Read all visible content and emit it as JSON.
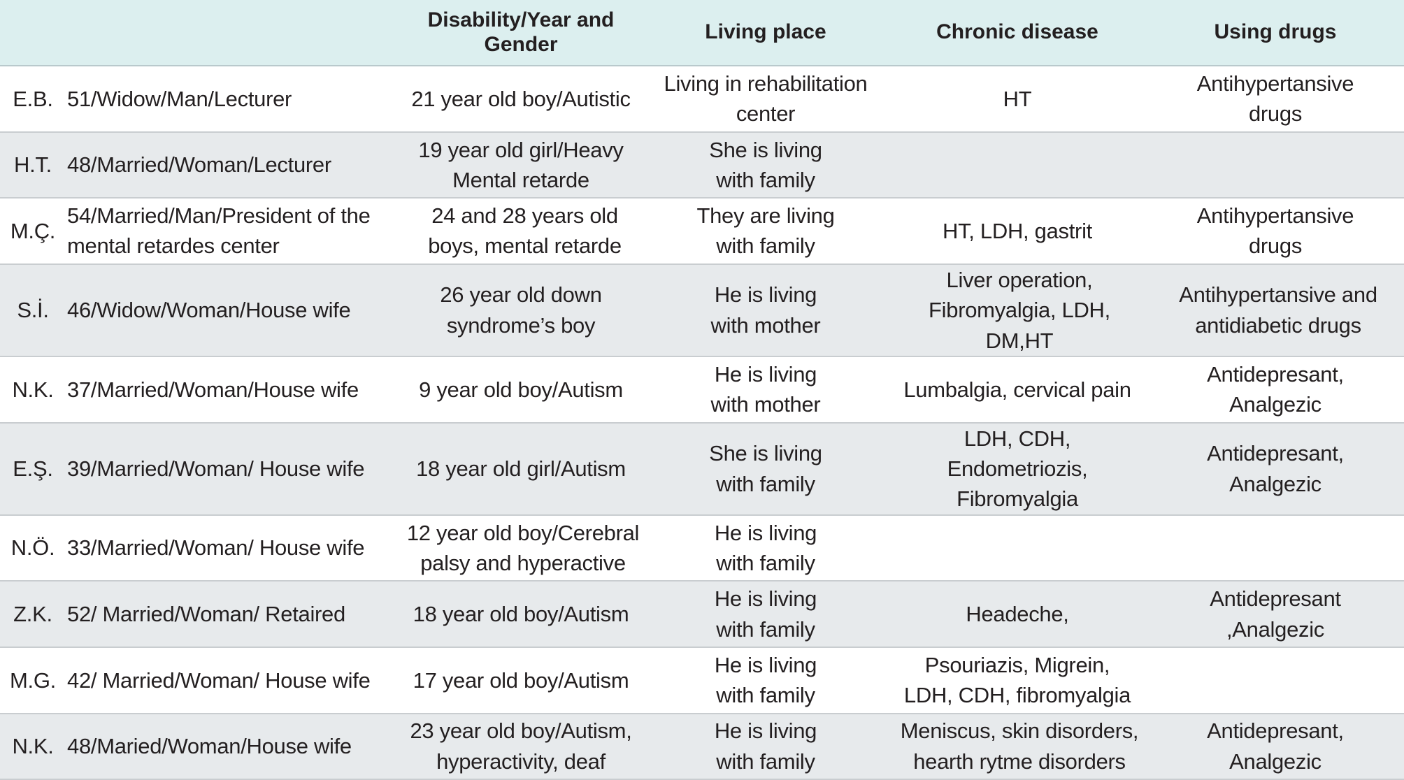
{
  "header": {
    "initials": "",
    "info": "",
    "disability": "Disability/Year and Gender",
    "living_place": "Living place",
    "chronic_disease": "Chronic disease",
    "using_drugs": "Using drugs"
  },
  "rows": [
    {
      "initials": "E.B.",
      "info": "51/Widow/Man/Lecturer",
      "disability": "21 year old boy/Autistic",
      "living_place": "Living in rehabilitation center",
      "chronic_disease": "HT",
      "using_drugs": "Antihypertansive drugs"
    },
    {
      "initials": "H.T.",
      "info": "48/Married/Woman/Lecturer",
      "disability": "19 year old girl/Heavy Mental retarde",
      "living_place": "She is living with family",
      "chronic_disease": "",
      "using_drugs": ""
    },
    {
      "initials": "M.Ç.",
      "info": "54/Married/Man/President of the mental retardes center",
      "disability": "24 and 28 years old boys, mental retarde",
      "living_place": "They are living with family",
      "chronic_disease": "HT, LDH, gastrit",
      "using_drugs": "Antihypertansive drugs"
    },
    {
      "initials": "S.İ.",
      "info": "46/Widow/Woman/House wife",
      "disability": "26 year old down syndrome’s boy",
      "living_place": "He is living with mother",
      "chronic_disease": "Liver operation, Fibromyalgia, LDH, DM,HT",
      "using_drugs": "Antihypertansive and antidiabetic drugs"
    },
    {
      "initials": "N.K.",
      "info": "37/Married/Woman/House wife",
      "disability": "9 year old boy/Autism",
      "living_place": "He is living with mother",
      "chronic_disease": "Lumbalgia, cervical pain",
      "using_drugs": "Antidepresant, Analgezic"
    },
    {
      "initials": "E.Ş.",
      "info": "39/Married/Woman/ House wife",
      "disability": "18 year old girl/Autism",
      "living_place": "She is living with family",
      "chronic_disease": "LDH, CDH, Endometriozis, Fibromyalgia",
      "using_drugs": "Antidepresant, Analgezic"
    },
    {
      "initials": "N.Ö.",
      "info": "33/Married/Woman/ House wife",
      "disability": "12 year old boy/Cerebral palsy and hyperactive",
      "living_place": "He is living with family",
      "chronic_disease": "",
      "using_drugs": ""
    },
    {
      "initials": "Z.K.",
      "info": "52/ Married/Woman/ Retaired",
      "disability": "18 year old boy/Autism",
      "living_place": "He is living with family",
      "chronic_disease": "Headeche,",
      "using_drugs": "Antidepresant ,Analgezic"
    },
    {
      "initials": "M.G.",
      "info": "42/ Married/Woman/ House wife",
      "disability": "17 year old boy/Autism",
      "living_place": "He is living with family",
      "chronic_disease": "Psouriazis, Migrein, LDH, CDH, fibromyalgia",
      "using_drugs": ""
    },
    {
      "initials": "N.K.",
      "info": "48/Maried/Woman/House wife",
      "disability": "23 year old boy/Autism, hyperactivity, deaf",
      "living_place": "He is living with family",
      "chronic_disease": "Meniscus, skin disorders, hearth rytme disorders",
      "using_drugs": "Antidepresant, Analgezic"
    }
  ]
}
